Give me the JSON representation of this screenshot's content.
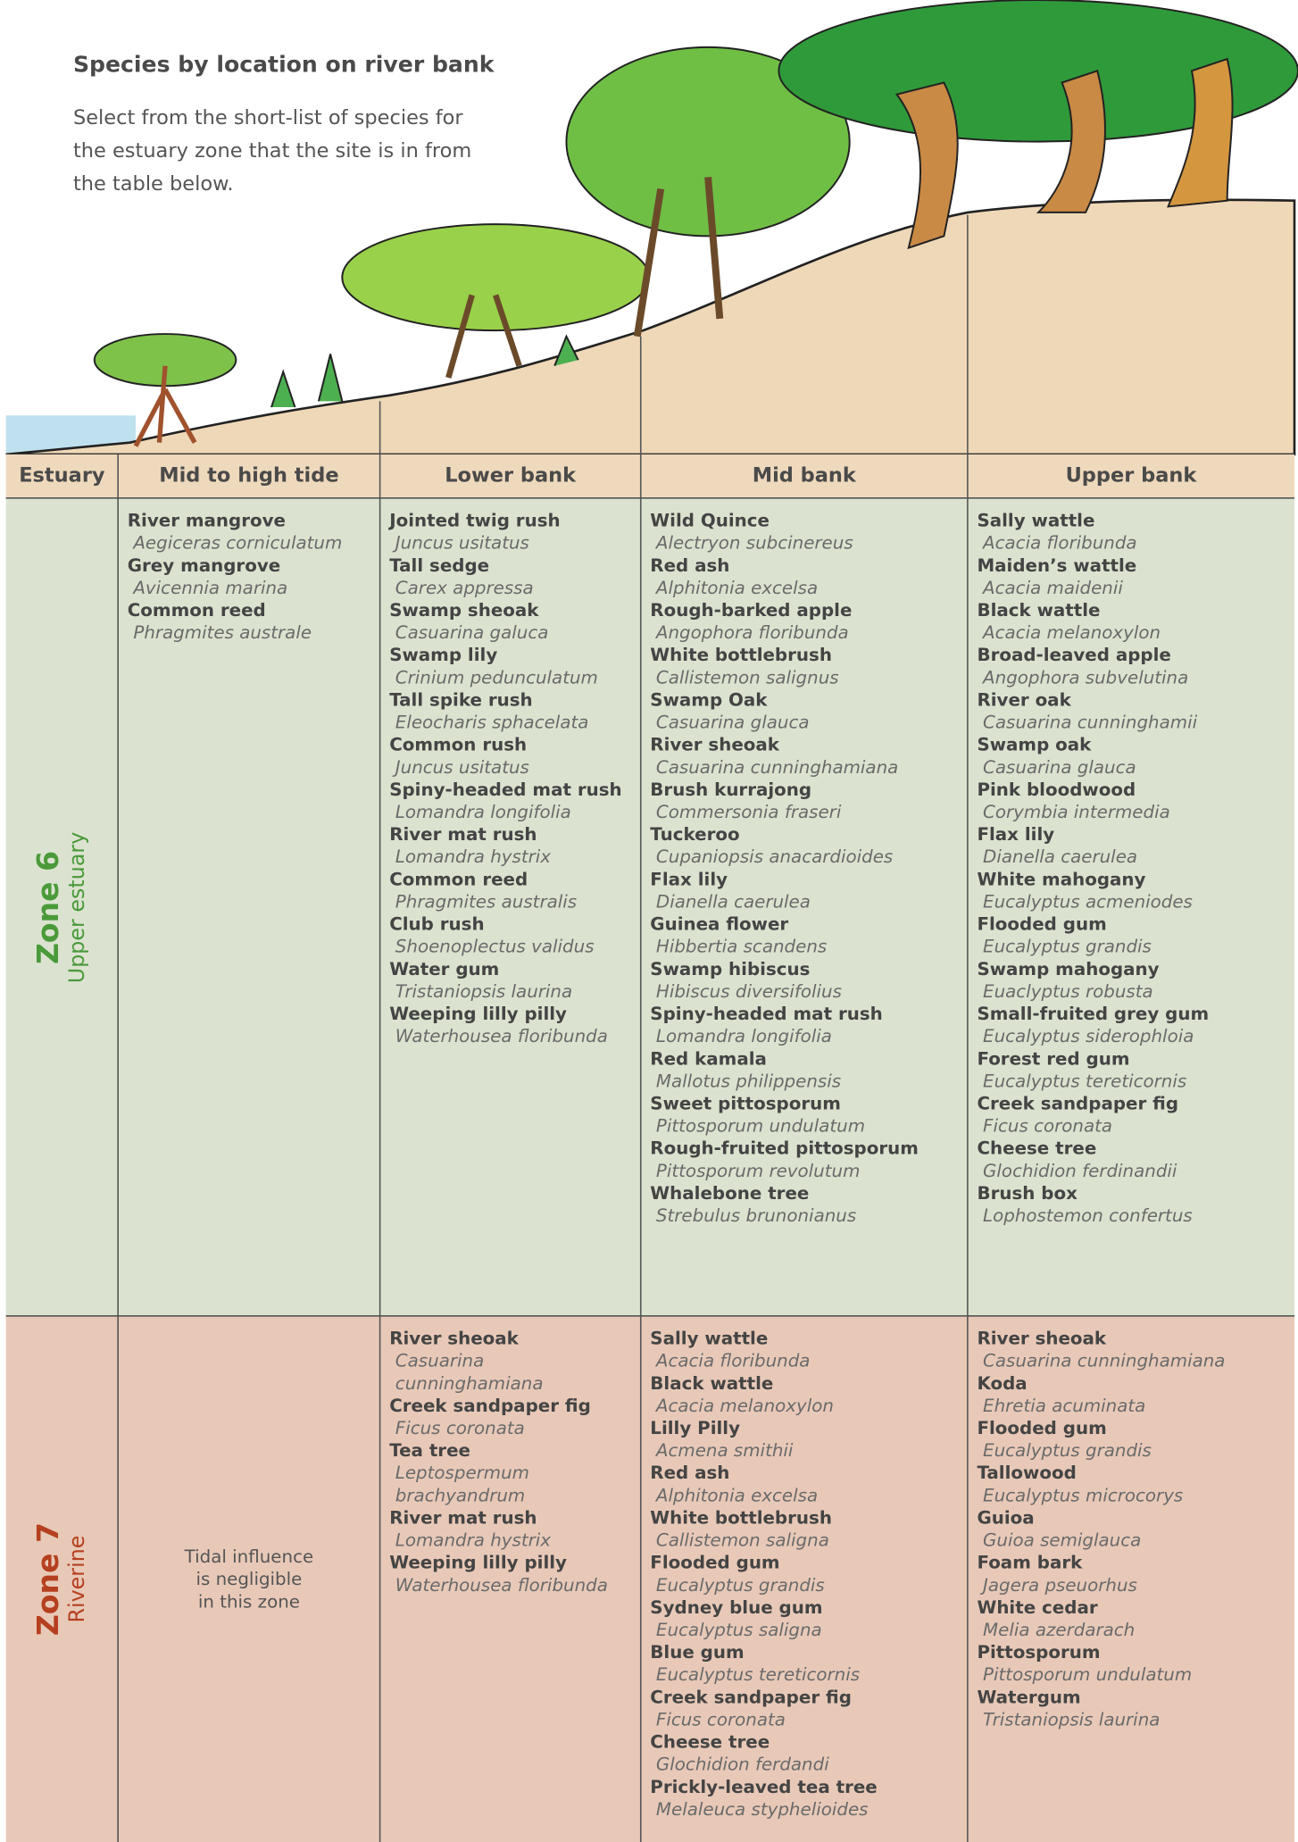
{
  "header": {
    "title": "Species by location on river bank",
    "subtitle": "Select from the short-list of species for the estuary zone that the site is in from the table below."
  },
  "table": {
    "columns": [
      "Estuary",
      "Mid to high tide",
      "Lower bank",
      "Mid bank",
      "Upper bank"
    ],
    "zones": [
      {
        "name": "Zone 6",
        "subtitle": "Upper estuary",
        "cells": [
          [
            {
              "common": "River mangrove",
              "scientific": "Aegiceras corniculatum"
            },
            {
              "common": "Grey mangrove",
              "scientific": "Avicennia marina"
            },
            {
              "common": "Common reed",
              "scientific": "Phragmites australe"
            }
          ],
          [
            {
              "common": "Jointed twig rush",
              "scientific": "Juncus usitatus"
            },
            {
              "common": "Tall sedge",
              "scientific": "Carex appressa"
            },
            {
              "common": "Swamp sheoak",
              "scientific": "Casuarina galuca"
            },
            {
              "common": "Swamp lily",
              "scientific": "Crinium pedunculatum"
            },
            {
              "common": "Tall spike rush",
              "scientific": "Eleocharis sphacelata"
            },
            {
              "common": "Common rush",
              "scientific": "Juncus usitatus"
            },
            {
              "common": "Spiny-headed mat rush",
              "scientific": "Lomandra longifolia"
            },
            {
              "common": "River mat rush",
              "scientific": "Lomandra hystrix"
            },
            {
              "common": "Common reed",
              "scientific": "Phragmites australis"
            },
            {
              "common": "Club rush",
              "scientific": "Shoenoplectus validus"
            },
            {
              "common": "Water gum",
              "scientific": "Tristaniopsis laurina"
            },
            {
              "common": "Weeping lilly pilly",
              "scientific": "Waterhousea floribunda"
            }
          ],
          [
            {
              "common": "Wild Quince",
              "scientific": "Alectryon subcinereus"
            },
            {
              "common": "Red ash",
              "scientific": "Alphitonia excelsa"
            },
            {
              "common": "Rough-barked apple",
              "scientific": "Angophora floribunda"
            },
            {
              "common": "White bottlebrush",
              "scientific": "Callistemon salignus"
            },
            {
              "common": "Swamp Oak",
              "scientific": "Casuarina glauca"
            },
            {
              "common": "River sheoak",
              "scientific": "Casuarina cunninghamiana"
            },
            {
              "common": "Brush kurrajong",
              "scientific": "Commersonia fraseri"
            },
            {
              "common": "Tuckeroo",
              "scientific": "Cupaniopsis anacardioides"
            },
            {
              "common": "Flax lily",
              "scientific": "Dianella caerulea"
            },
            {
              "common": "Guinea flower",
              "scientific": "Hibbertia scandens"
            },
            {
              "common": "Swamp hibiscus",
              "scientific": "Hibiscus diversifolius"
            },
            {
              "common": "Spiny-headed mat rush",
              "scientific": "Lomandra longifolia"
            },
            {
              "common": "Red kamala",
              "scientific": "Mallotus philippensis"
            },
            {
              "common": "Sweet pittosporum",
              "scientific": "Pittosporum undulatum"
            },
            {
              "common": "Rough-fruited pittosporum",
              "scientific": "Pittosporum revolutum"
            },
            {
              "common": "Whalebone tree",
              "scientific": "Strebulus brunonianus"
            }
          ],
          [
            {
              "common": "Sally wattle",
              "scientific": "Acacia floribunda"
            },
            {
              "common": "Maiden’s wattle",
              "scientific": "Acacia maidenii"
            },
            {
              "common": "Black wattle",
              "scientific": "Acacia melanoxylon"
            },
            {
              "common": "Broad-leaved apple",
              "scientific": "Angophora subvelutina"
            },
            {
              "common": "River oak",
              "scientific": "Casuarina cunninghamii"
            },
            {
              "common": "Swamp oak",
              "scientific": "Casuarina glauca"
            },
            {
              "common": "Pink bloodwood",
              "scientific": "Corymbia intermedia"
            },
            {
              "common": "Flax lily",
              "scientific": "Dianella caerulea"
            },
            {
              "common": "White mahogany",
              "scientific": "Eucalyptus acmeniodes"
            },
            {
              "common": "Flooded gum",
              "scientific": "Eucalyptus grandis"
            },
            {
              "common": "Swamp mahogany",
              "scientific": "Euaclyptus robusta"
            },
            {
              "common": "Small-fruited grey gum",
              "scientific": "Eucalyptus siderophloia"
            },
            {
              "common": "Forest red gum",
              "scientific": "Eucalyptus tereticornis"
            },
            {
              "common": "Creek sandpaper fig",
              "scientific": "Ficus coronata"
            },
            {
              "common": "Cheese tree",
              "scientific": "Glochidion ferdinandii"
            },
            {
              "common": "Brush box",
              "scientific": "Lophostemon confertus"
            }
          ]
        ]
      },
      {
        "name": "Zone 7",
        "subtitle": "Riverine",
        "note": [
          "Tidal influence",
          "is negligible",
          "in this zone"
        ],
        "cells": [
          [],
          [
            {
              "common": "River sheoak",
              "scientific": "Casuarina cunninghamiana"
            },
            {
              "common": "Creek sandpaper fig",
              "scientific": "Ficus coronata"
            },
            {
              "common": "Tea tree",
              "scientific": "Leptospermum brachyandrum"
            },
            {
              "common": "River mat rush",
              "scientific": "Lomandra hystrix"
            },
            {
              "common": "Weeping lilly pilly",
              "scientific": "Waterhousea floribunda"
            }
          ],
          [
            {
              "common": "Sally wattle",
              "scientific": "Acacia floribunda"
            },
            {
              "common": "Black wattle",
              "scientific": "Acacia melanoxylon"
            },
            {
              "common": "Lilly Pilly",
              "scientific": "Acmena smithii"
            },
            {
              "common": "Red ash",
              "scientific": "Alphitonia excelsa"
            },
            {
              "common": "White bottlebrush",
              "scientific": "Callistemon saligna"
            },
            {
              "common": "Flooded gum",
              "scientific": "Eucalyptus grandis"
            },
            {
              "common": "Sydney blue gum",
              "scientific": "Eucalyptus saligna"
            },
            {
              "common": "Blue gum",
              "scientific": "Eucalyptus tereticornis"
            },
            {
              "common": "Creek sandpaper fig",
              "scientific": "Ficus coronata"
            },
            {
              "common": "Cheese tree",
              "scientific": "Glochidion ferdandi"
            },
            {
              "common": "Prickly-leaved tea tree",
              "scientific": "Melaleuca styphelioides"
            }
          ],
          [
            {
              "common": "River sheoak",
              "scientific": "Casuarina cunninghamiana"
            },
            {
              "common": "Koda",
              "scientific": "Ehretia acuminata"
            },
            {
              "common": "Flooded gum",
              "scientific": "Eucalyptus grandis"
            },
            {
              "common": "Tallowood",
              "scientific": "Eucalyptus microcorys"
            },
            {
              "common": "Guioa",
              "scientific": "Guioa semiglauca"
            },
            {
              "common": "Foam bark",
              "scientific": "Jagera pseuorhus"
            },
            {
              "common": "White cedar",
              "scientific": "Melia azerdarach"
            },
            {
              "common": "Pittosporum",
              "scientific": "Pittosporum undulatum"
            },
            {
              "common": "Watergum",
              "scientific": "Tristaniopsis laurina"
            }
          ]
        ]
      }
    ]
  }
}
